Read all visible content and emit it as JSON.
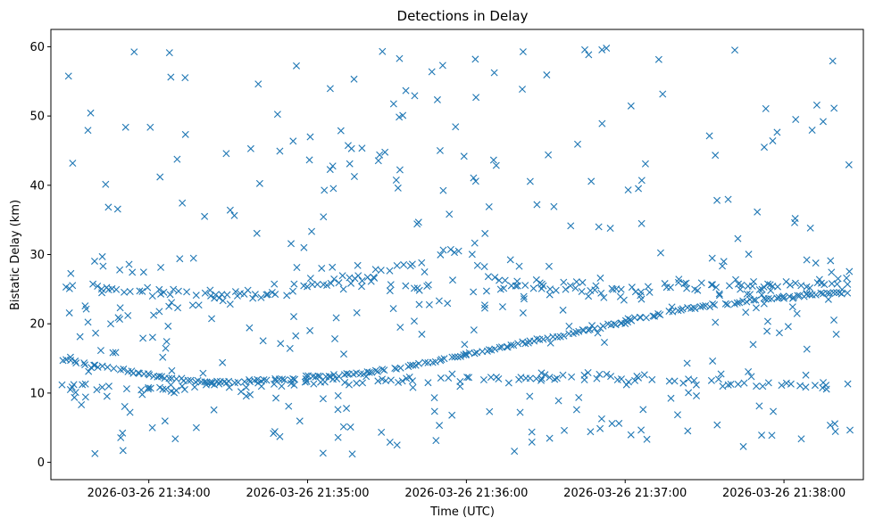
{
  "chart_data": {
    "type": "scatter",
    "title": "Detections in Delay",
    "xlabel": "Time (UTC)",
    "ylabel": "Bistatic Delay (km)",
    "marker": "x",
    "marker_color": "#1f77b4",
    "x_start": "2026-03-26 21:33:28",
    "x_end": "2026-03-26 21:38:25",
    "xlim": [
      "2026-03-26 21:33:23",
      "2026-03-26 21:38:30"
    ],
    "ylim": [
      -2.5,
      62.5
    ],
    "y_ticks": [
      0,
      10,
      20,
      30,
      40,
      50,
      60
    ],
    "x_ticks": [
      "2026-03-26 21:34:00",
      "2026-03-26 21:35:00",
      "2026-03-26 21:36:00",
      "2026-03-26 21:37:00",
      "2026-03-26 21:38:00"
    ],
    "grid": false,
    "series": [
      {
        "trend_a": [
          [
            0,
            14.8
          ],
          [
            20,
            13.5
          ],
          [
            35,
            12.4
          ],
          [
            55,
            11.5
          ],
          [
            75,
            11.8
          ],
          [
            95,
            12.3
          ],
          [
            115,
            13.0
          ],
          [
            135,
            14.2
          ],
          [
            155,
            15.8
          ],
          [
            175,
            17.3
          ],
          [
            195,
            18.9
          ],
          [
            215,
            20.6
          ],
          [
            232,
            22.0
          ],
          [
            250,
            22.9
          ],
          [
            270,
            23.8
          ],
          [
            297,
            24.6
          ]
        ],
        "trend_b": [
          [
            0,
            25.7
          ],
          [
            30,
            24.8
          ],
          [
            60,
            24.0
          ],
          [
            80,
            24.3
          ],
          [
            95,
            25.5
          ],
          [
            115,
            27.0
          ],
          [
            135,
            28.9
          ],
          [
            150,
            30.8
          ],
          [
            165,
            25.6
          ],
          [
            200,
            25.0
          ],
          [
            240,
            25.3
          ],
          [
            297,
            25.6
          ]
        ],
        "trend_c": [
          [
            0,
            11.0
          ],
          [
            30,
            10.6
          ],
          [
            55,
            10.8
          ],
          [
            80,
            11.2
          ],
          [
            100,
            11.8
          ],
          [
            140,
            12.0
          ],
          [
            170,
            11.8
          ],
          [
            200,
            12.4
          ],
          [
            230,
            11.8
          ],
          [
            265,
            11.3
          ],
          [
            297,
            11.2
          ]
        ],
        "trend_d": [
          [
            20,
            20.9
          ],
          [
            60,
            23.8
          ],
          [
            110,
            27.2
          ],
          [
            150,
            23.4
          ],
          [
            190,
            25.9
          ],
          [
            210,
            24.5
          ],
          [
            240,
            26.0
          ],
          [
            270,
            23.7
          ],
          [
            297,
            27.9
          ]
        ]
      }
    ]
  }
}
